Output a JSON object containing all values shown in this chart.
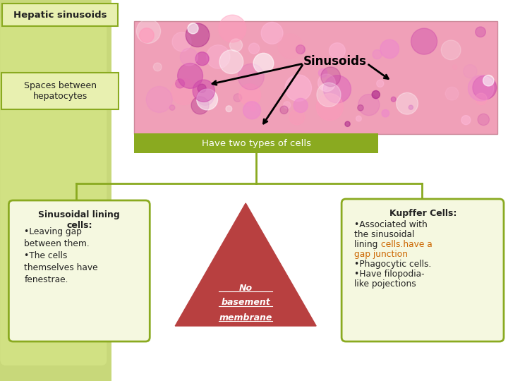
{
  "title": "Hepatic sinusoids",
  "background_color": "#ffffff",
  "spaces_label": "Spaces between\nhepatocytes",
  "spaces_box_color": "#e8f0b0",
  "spaces_box_border": "#8aaa20",
  "sinusoids_label": "Sinusoids",
  "have_two_label": "Have two types of cells",
  "have_two_bg": "#8aaa20",
  "have_two_text_color": "#ffffff",
  "left_box_title": "Sinusoidal lining\ncells:",
  "left_box_body": "•Leaving gap\nbetween them.\n•The cells\nthemselves have\nfenestrae.",
  "left_box_bg": "#f5f8e0",
  "left_box_border": "#8aaa20",
  "center_triangle_color": "#b84040",
  "center_label_line1": "No",
  "center_label_line2": "basement",
  "center_label_line3": "membrane",
  "right_box_title": "Kupffer Cells:",
  "right_box_line1": "•Associated with",
  "right_box_line2": "the sinusoidal",
  "right_box_line3": "lining ",
  "right_box_line3_orange": "cells.have a",
  "right_box_line4_orange": "gap junction",
  "right_box_line5": "•Phagocytic cells.",
  "right_box_line6": "•Have filopodia-",
  "right_box_line7": "like pojections",
  "right_box_bg": "#f5f8e0",
  "right_box_border": "#8aaa20",
  "orange_color": "#cc6600",
  "connector_color": "#8aaa20",
  "title_bg": "#e8f0b0",
  "title_border": "#8aaa20",
  "left_strip_color": "#c8d87a",
  "left_strip_inner": "#d8e88a"
}
